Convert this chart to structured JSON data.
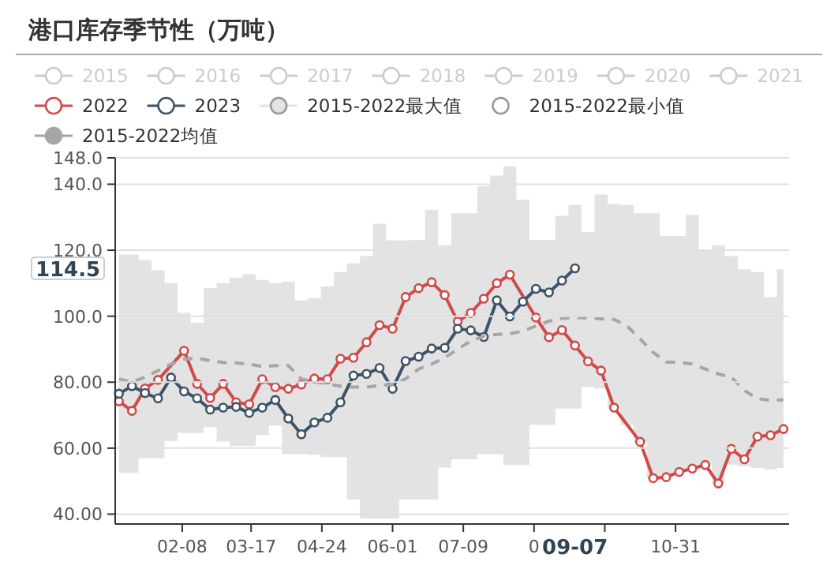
{
  "chart_data": {
    "type": "line",
    "title": "港口库存季节性（万吨）",
    "x": [
      "--01-05",
      "--01-12",
      "--01-19",
      "--01-26",
      "--02-02",
      "--02-09",
      "--02-16",
      "--02-23",
      "--03-02",
      "--03-09",
      "--03-16",
      "--03-23",
      "--03-30",
      "--04-06",
      "--04-13",
      "--04-20",
      "--04-27",
      "--05-04",
      "--05-11",
      "--05-18",
      "--05-25",
      "--06-01",
      "--06-08",
      "--06-15",
      "--06-22",
      "--06-29",
      "--07-06",
      "--07-13",
      "--07-20",
      "--07-27",
      "--08-03",
      "--08-10",
      "--08-17",
      "--08-24",
      "--08-31",
      "--09-07",
      "--09-14",
      "--09-21",
      "--09-28",
      "--10-05",
      "--10-12",
      "--10-19",
      "--10-26",
      "--11-02",
      "--11-09",
      "--11-16",
      "--11-23",
      "--11-30",
      "--12-07",
      "--12-14",
      "--12-21",
      "--12-28"
    ],
    "series": [
      {
        "name": "2015",
        "color": "#cccccc",
        "values": [
          null,
          null,
          null,
          null,
          null,
          null,
          null,
          null,
          null,
          null,
          null,
          null,
          null,
          null,
          null,
          null,
          null,
          null,
          null,
          null,
          null,
          null,
          null,
          null,
          null,
          null,
          null,
          null,
          null,
          null,
          null,
          null,
          null,
          null,
          null,
          null,
          null,
          null,
          null,
          null,
          null,
          null,
          null,
          null,
          null,
          null,
          null,
          null,
          null,
          null,
          null,
          null
        ]
      },
      {
        "name": "2016",
        "color": "#cccccc",
        "values": [
          null,
          null,
          null,
          null,
          null,
          null,
          null,
          null,
          null,
          null,
          null,
          null,
          null,
          null,
          null,
          null,
          null,
          null,
          null,
          null,
          null,
          null,
          null,
          null,
          null,
          null,
          null,
          null,
          null,
          null,
          null,
          null,
          null,
          null,
          null,
          null,
          null,
          null,
          null,
          null,
          null,
          null,
          null,
          null,
          null,
          null,
          null,
          null,
          null,
          null,
          null,
          null
        ]
      },
      {
        "name": "2017",
        "color": "#cccccc",
        "values": [
          null,
          null,
          null,
          null,
          null,
          null,
          null,
          null,
          null,
          null,
          null,
          null,
          null,
          null,
          null,
          null,
          null,
          null,
          null,
          null,
          null,
          null,
          null,
          null,
          null,
          null,
          null,
          null,
          null,
          null,
          null,
          null,
          null,
          null,
          null,
          null,
          null,
          null,
          null,
          null,
          null,
          null,
          null,
          null,
          null,
          null,
          null,
          null,
          null,
          null,
          null,
          null
        ]
      },
      {
        "name": "2018",
        "color": "#cccccc",
        "values": [
          null,
          null,
          null,
          null,
          null,
          null,
          null,
          null,
          null,
          null,
          null,
          null,
          null,
          null,
          null,
          null,
          null,
          null,
          null,
          null,
          null,
          null,
          null,
          null,
          null,
          null,
          null,
          null,
          null,
          null,
          null,
          null,
          null,
          null,
          null,
          null,
          null,
          null,
          null,
          null,
          null,
          null,
          null,
          null,
          null,
          null,
          null,
          null,
          null,
          null,
          null,
          null
        ]
      },
      {
        "name": "2019",
        "color": "#cccccc",
        "values": [
          null,
          null,
          null,
          null,
          null,
          null,
          null,
          null,
          null,
          null,
          null,
          null,
          null,
          null,
          null,
          null,
          null,
          null,
          null,
          null,
          null,
          null,
          null,
          null,
          null,
          null,
          null,
          null,
          null,
          null,
          null,
          null,
          null,
          null,
          null,
          null,
          null,
          null,
          null,
          null,
          null,
          null,
          null,
          null,
          null,
          null,
          null,
          null,
          null,
          null,
          null,
          null
        ]
      },
      {
        "name": "2020",
        "color": "#cccccc",
        "values": [
          null,
          null,
          null,
          null,
          null,
          null,
          null,
          null,
          null,
          null,
          null,
          null,
          null,
          null,
          null,
          null,
          null,
          null,
          null,
          null,
          null,
          null,
          null,
          null,
          null,
          null,
          null,
          null,
          null,
          null,
          null,
          null,
          null,
          null,
          null,
          null,
          null,
          null,
          null,
          null,
          null,
          null,
          null,
          null,
          null,
          null,
          null,
          null,
          null,
          null,
          null,
          null
        ]
      },
      {
        "name": "2021",
        "color": "#cccccc",
        "values": [
          null,
          null,
          null,
          null,
          null,
          null,
          null,
          null,
          null,
          null,
          null,
          null,
          null,
          null,
          null,
          null,
          null,
          null,
          null,
          null,
          null,
          null,
          null,
          null,
          null,
          null,
          null,
          null,
          null,
          null,
          null,
          null,
          null,
          null,
          null,
          null,
          null,
          null,
          null,
          null,
          null,
          null,
          null,
          null,
          null,
          null,
          null,
          null,
          null,
          null,
          null,
          null
        ]
      },
      {
        "name": "2022",
        "color": "#d14a4a",
        "values": [
          74.2,
          71.3,
          78.1,
          80.7,
          null,
          89.5,
          79.5,
          75.2,
          79.5,
          73.9,
          73.3,
          80.9,
          78.5,
          78.0,
          79.3,
          81.1,
          80.9,
          87.1,
          87.4,
          92.1,
          97.3,
          96.2,
          105.8,
          108.5,
          110.3,
          106.4,
          98.4,
          101.0,
          105.3,
          110.0,
          112.6,
          null,
          99.6,
          93.6,
          95.8,
          91.1,
          86.3,
          83.5,
          72.3,
          null,
          61.9,
          50.9,
          51.2,
          52.8,
          53.8,
          54.9,
          49.3,
          59.8,
          56.6,
          63.5,
          63.9,
          65.8
        ]
      },
      {
        "name": "2023",
        "color": "#3d5468",
        "values": [
          76.5,
          78.8,
          76.7,
          75.1,
          81.4,
          77.2,
          75.1,
          71.7,
          72.3,
          72.5,
          70.7,
          72.3,
          74.6,
          69.0,
          64.2,
          67.8,
          69.2,
          73.9,
          82.0,
          82.5,
          84.3,
          78.0,
          86.4,
          87.7,
          90.2,
          90.4,
          96.2,
          95.7,
          93.7,
          104.8,
          99.9,
          104.4,
          108.3,
          107.2,
          110.8,
          114.5,
          null,
          null,
          null,
          null,
          null,
          null,
          null,
          null,
          null,
          null,
          null,
          null,
          null,
          null,
          null,
          null
        ]
      },
      {
        "name": "2015-2022最大值",
        "type": "area",
        "color": "#e3e3e3",
        "marker": "none",
        "values": [
          118.7,
          118.7,
          117,
          114,
          110,
          101,
          98,
          108.5,
          110,
          111.7,
          112.7,
          111,
          110,
          110.5,
          104.8,
          105.5,
          109,
          113.4,
          116,
          118.2,
          128,
          123,
          123,
          123.1,
          132.3,
          121.5,
          131.2,
          131.2,
          139.4,
          142.6,
          145.4,
          135.3,
          123.1,
          123.1,
          130.4,
          133.7,
          125.5,
          136.9,
          134,
          133.7,
          131.2,
          131.2,
          124.3,
          124.3,
          130.7,
          119.9,
          121.5,
          118.2,
          114.2,
          113.4,
          105.8,
          114.2
        ]
      },
      {
        "name": "2015-2022最小值",
        "type": "area",
        "color": "#ffffff",
        "marker": "none",
        "values": [
          52.5,
          52.5,
          56.9,
          56.9,
          62.2,
          64.6,
          64.6,
          66.3,
          62,
          60.6,
          60.6,
          63.9,
          66.9,
          58.2,
          58.2,
          58,
          57.3,
          57.3,
          44.4,
          38.7,
          38.7,
          38.7,
          44.4,
          44.4,
          44.4,
          54.1,
          56.6,
          56.6,
          58.2,
          58.2,
          54.9,
          54.9,
          67.1,
          67.1,
          72,
          72,
          78.5,
          78,
          72.3,
          67,
          61.9,
          50.9,
          51.2,
          52.8,
          53.8,
          54.9,
          49.3,
          55,
          54.5,
          54,
          53.5,
          54
        ]
      },
      {
        "name": "2015-2022均值",
        "color": "#a6a6a6",
        "line_style": "dashed",
        "marker": "none",
        "values": [
          81,
          80,
          81.5,
          83.5,
          85.5,
          87,
          87.3,
          86.5,
          86,
          85.8,
          85.5,
          84.7,
          85,
          85,
          81,
          80,
          79.5,
          78.8,
          78.5,
          78.5,
          79,
          79.3,
          81,
          84,
          85.5,
          87.4,
          90,
          92.5,
          93.9,
          94.5,
          94.7,
          95.5,
          97,
          98.5,
          99.3,
          99.6,
          99.5,
          99.2,
          99,
          97,
          93.1,
          89,
          86.1,
          86,
          85.5,
          84,
          82.5,
          81.5,
          77.5,
          75,
          74.5,
          74.6
        ]
      }
    ],
    "xlim": [
      "--01-03",
      "--12-31"
    ],
    "xticks": [
      {
        "value": "--02-08",
        "label": "02-08"
      },
      {
        "value": "--03-17",
        "label": "03-17"
      },
      {
        "value": "--04-24",
        "label": "04-24"
      },
      {
        "value": "--06-01",
        "label": "06-01"
      },
      {
        "value": "--07-09",
        "label": "07-09"
      },
      {
        "value": "--08-16",
        "label": "0"
      },
      {
        "value": "--09-23",
        "label": null
      },
      {
        "value": "--10-31",
        "label": "10-31"
      }
    ],
    "ylim": [
      37,
      148
    ],
    "yticks": [
      {
        "value": 40,
        "label": "40.00"
      },
      {
        "value": 60,
        "label": "60.00"
      },
      {
        "value": 80,
        "label": "80.00"
      },
      {
        "value": 100,
        "label": "100.0"
      },
      {
        "value": 120,
        "label": "120.0"
      },
      {
        "value": 140,
        "label": "140.0"
      },
      {
        "value": 148,
        "label": "148.0"
      }
    ],
    "annotations": [
      "114.5",
      "09-07"
    ],
    "grid": "y",
    "legend": "top",
    "marker": "circle",
    "line_style": "solid"
  }
}
